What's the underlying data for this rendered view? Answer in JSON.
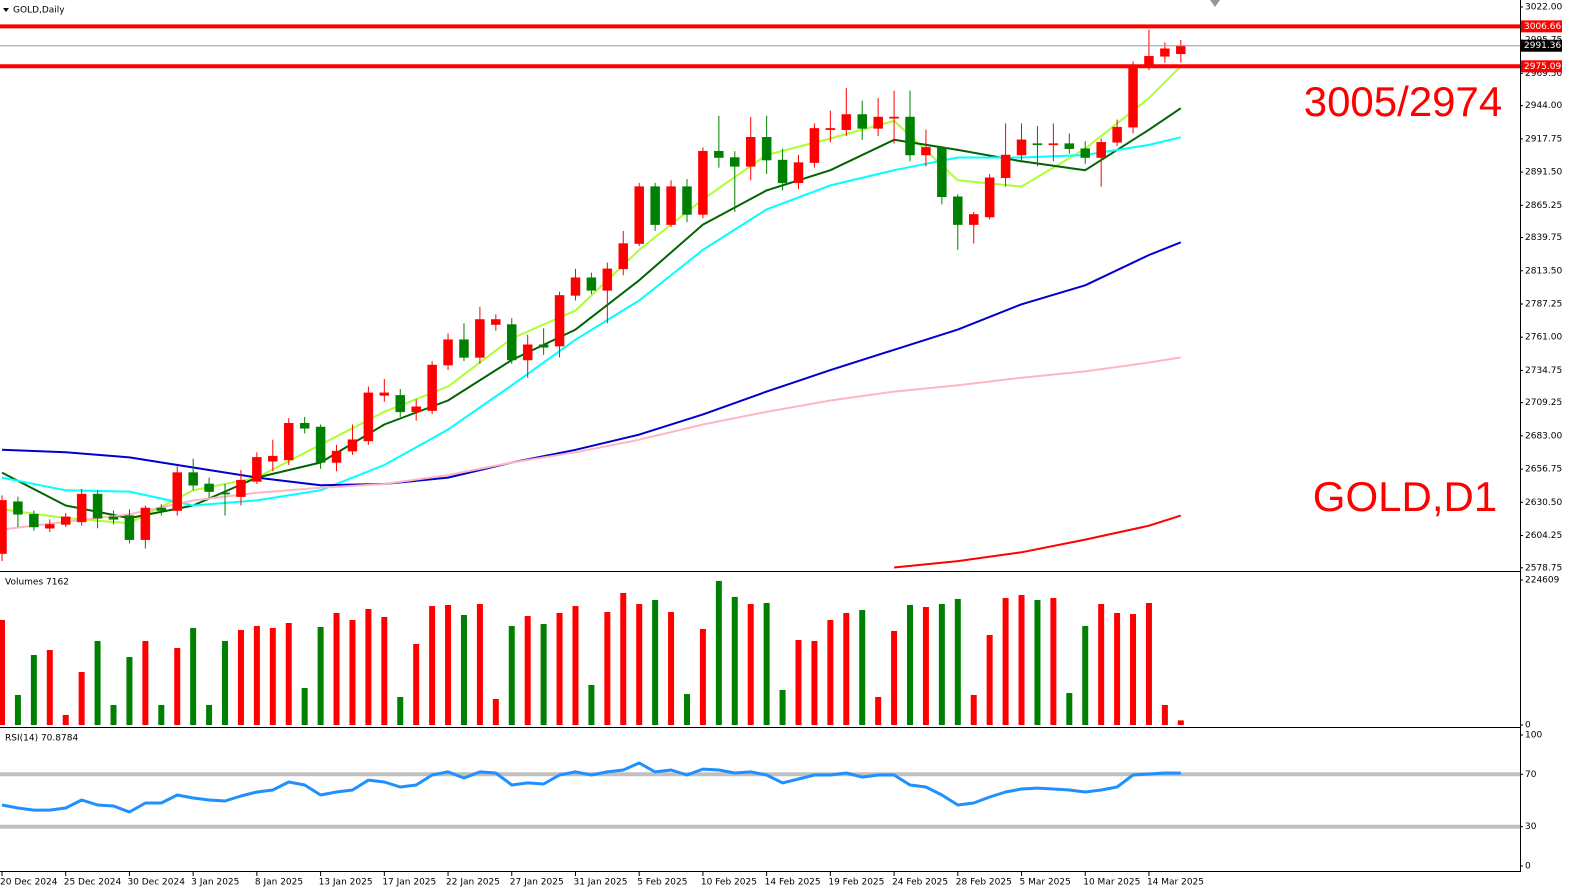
{
  "chart_data": [
    {
      "type": "candlestick",
      "title": "GOLD,Daily",
      "categories": [
        "20 Dec 2024",
        null,
        null,
        null,
        "25 Dec 2024",
        null,
        null,
        null,
        "30 Dec 2024",
        null,
        null,
        null,
        "3 Jan 2025",
        null,
        null,
        null,
        "8 Jan 2025",
        null,
        null,
        null,
        "13 Jan 2025",
        null,
        null,
        null,
        "17 Jan 2025",
        null,
        null,
        null,
        "22 Jan 2025",
        null,
        null,
        null,
        "27 Jan 2025",
        null,
        null,
        null,
        "31 Jan 2025",
        null,
        null,
        null,
        "5 Feb 2025",
        null,
        null,
        null,
        "10 Feb 2025",
        null,
        null,
        null,
        "14 Feb 2025",
        null,
        null,
        null,
        "19 Feb 2025",
        null,
        null,
        null,
        "24 Feb 2025",
        null,
        null,
        null,
        "28 Feb 2025",
        null,
        null,
        null,
        "5 Mar 2025",
        null,
        null,
        null,
        "10 Mar 2025",
        null,
        null,
        null,
        "14 Mar 2025",
        null,
        null
      ],
      "open": [
        2590,
        2631,
        2621,
        2610,
        2613,
        2615,
        2637,
        2619,
        2620,
        2601,
        2626,
        2624,
        2654,
        2645,
        2638,
        2635,
        2647,
        2663,
        2664,
        2693,
        2690,
        2662,
        2671,
        2679,
        2715,
        2715,
        2702,
        2703,
        2739,
        2759,
        2745,
        2771,
        2771,
        2743,
        2755,
        2754,
        2794,
        2808,
        2798,
        2815,
        2835,
        2880,
        2850,
        2880,
        2858,
        2908,
        2903,
        2896,
        2919,
        2901,
        2883,
        2899,
        2925,
        2925,
        2937,
        2926,
        2934,
        2935,
        2905,
        2911,
        2872,
        2850,
        2856,
        2887,
        2905,
        2914,
        2913,
        2914,
        2910,
        2903,
        2915,
        2927,
        2976,
        2983,
        2985
      ],
      "high": [
        2636,
        2635,
        2624,
        2617,
        2622,
        2641,
        2640,
        2624,
        2625,
        2628,
        2629,
        2659,
        2665,
        2650,
        2645,
        2656,
        2670,
        2680,
        2697,
        2698,
        2692,
        2676,
        2692,
        2722,
        2728,
        2720,
        2712,
        2742,
        2764,
        2772,
        2785,
        2779,
        2776,
        2763,
        2768,
        2797,
        2815,
        2812,
        2820,
        2845,
        2883,
        2883,
        2885,
        2886,
        2911,
        2936,
        2908,
        2935,
        2936,
        2910,
        2905,
        2930,
        2940,
        2958,
        2948,
        2950,
        2956,
        2956,
        2925,
        2912,
        2874,
        2860,
        2890,
        2930,
        2930,
        2928,
        2930,
        2922,
        2916,
        2918,
        2933,
        2979,
        3004,
        2994,
        2996
      ],
      "low": [
        2584,
        2611,
        2608,
        2607,
        2611,
        2612,
        2610,
        2613,
        2598,
        2594,
        2620,
        2620,
        2640,
        2634,
        2620,
        2628,
        2645,
        2655,
        2660,
        2685,
        2657,
        2655,
        2668,
        2676,
        2710,
        2698,
        2695,
        2700,
        2735,
        2742,
        2740,
        2766,
        2740,
        2729,
        2747,
        2745,
        2790,
        2795,
        2772,
        2810,
        2833,
        2845,
        2848,
        2852,
        2855,
        2895,
        2860,
        2885,
        2890,
        2877,
        2878,
        2895,
        2915,
        2920,
        2917,
        2920,
        2914,
        2900,
        2896,
        2866,
        2830,
        2835,
        2854,
        2880,
        2899,
        2896,
        2900,
        2906,
        2898,
        2880,
        2912,
        2922,
        2972,
        2978,
        2978
      ],
      "close": [
        2632,
        2621,
        2611,
        2613,
        2619,
        2637,
        2618,
        2617,
        2601,
        2626,
        2624,
        2654,
        2644,
        2639,
        2637,
        2648,
        2666,
        2667,
        2693,
        2689,
        2662,
        2671,
        2680,
        2717,
        2717,
        2702,
        2706,
        2739,
        2759,
        2745,
        2775,
        2775,
        2743,
        2755,
        2753,
        2794,
        2808,
        2798,
        2815,
        2835,
        2880,
        2850,
        2880,
        2858,
        2908,
        2903,
        2896,
        2919,
        2901,
        2883,
        2899,
        2926,
        2926,
        2937,
        2926,
        2935,
        2935,
        2905,
        2911,
        2872,
        2850,
        2858,
        2887,
        2905,
        2917,
        2913,
        2914,
        2910,
        2903,
        2915,
        2927,
        2976,
        2983,
        2989,
        2991.36
      ],
      "up_color": "#ff0000",
      "down_color": "#008000",
      "ma_x": [
        0,
        4,
        8,
        12,
        16,
        20,
        24,
        28,
        32,
        36,
        40,
        44,
        48,
        52,
        56,
        60,
        64,
        68,
        72,
        74
      ],
      "moving_averages": [
        {
          "color": "#adff2f",
          "values": [
            2625,
            2618,
            2614,
            2640,
            2650,
            2676,
            2702,
            2722,
            2760,
            2782,
            2830,
            2870,
            2905,
            2918,
            2932,
            2885,
            2880,
            2910,
            2950,
            2975
          ]
        },
        {
          "color": "#006400",
          "values": [
            2654,
            2628,
            2618,
            2628,
            2650,
            2662,
            2692,
            2711,
            2743,
            2767,
            2806,
            2850,
            2877,
            2893,
            2917,
            2909,
            2900,
            2893,
            2925,
            2942
          ]
        },
        {
          "color": "#00ffff",
          "values": [
            2650,
            2640,
            2639,
            2628,
            2632,
            2640,
            2660,
            2688,
            2723,
            2759,
            2790,
            2830,
            2862,
            2881,
            2893,
            2903,
            2903,
            2905,
            2913,
            2919
          ]
        },
        {
          "color": "#0000cd",
          "values": [
            2672,
            2670,
            2666,
            2658,
            2650,
            2644,
            2645,
            2650,
            2662,
            2672,
            2684,
            2700,
            2718,
            2735,
            2751,
            2767,
            2787,
            2802,
            2826,
            2836
          ]
        },
        {
          "color": "#ffb6c1",
          "values": [
            2609,
            2615,
            2621,
            2632,
            2638,
            2642,
            2645,
            2652,
            2662,
            2670,
            2680,
            2692,
            2702,
            2711,
            2718,
            2723,
            2729,
            2734,
            2741,
            2745
          ]
        },
        {
          "color": "#ff0000",
          "values": [
            null,
            null,
            null,
            null,
            null,
            null,
            null,
            null,
            null,
            null,
            null,
            null,
            null,
            null,
            2579,
            2584,
            2591,
            2601,
            2612,
            2620
          ]
        }
      ],
      "levels": [
        3006.66,
        2991.36,
        2975.09
      ],
      "level_colors": [
        "#ff0000",
        "#8c9aa8",
        "#ff0000"
      ],
      "annotations": [
        "3005/2974",
        "GOLD,D1"
      ],
      "ylim": [
        2577,
        3027.5
      ],
      "yticks": [
        {
          "value": 3022,
          "label": "3022.00"
        },
        2995.75,
        {
          "value": 2969.5,
          "label": "2969.50"
        },
        {
          "value": 2944,
          "label": "2944.00"
        },
        2917.75,
        {
          "value": 2891.5,
          "label": "2891.50"
        },
        2865.25,
        2839.75,
        {
          "value": 2813.5,
          "label": "2813.50"
        },
        2787.25,
        {
          "value": 2761,
          "label": "2761.00"
        },
        2734.75,
        2709.25,
        {
          "value": 2683,
          "label": "2683.00"
        },
        2656.75,
        {
          "value": 2630.5,
          "label": "2630.50"
        },
        2604.25,
        2578.75
      ]
    },
    {
      "type": "bar",
      "title": "Volumes 7162",
      "values": [
        162600,
        46500,
        108400,
        116200,
        15500,
        82100,
        130100,
        31000,
        105300,
        130100,
        31000,
        119300,
        150300,
        31000,
        130100,
        147200,
        153400,
        150300,
        158000,
        57300,
        151800,
        173500,
        162600,
        179700,
        167300,
        43400,
        125500,
        184300,
        185900,
        170400,
        187400,
        40300,
        153400,
        168800,
        156400,
        173500,
        184300,
        62000,
        175000,
        204500,
        187400,
        193600,
        175000,
        48000,
        148700,
        223100,
        198300,
        187400,
        189000,
        54200,
        131700,
        130100,
        162600,
        173500,
        178100,
        43400,
        145600,
        185900,
        182800,
        187400,
        195200,
        46500,
        139400,
        196700,
        201400,
        193600,
        196700,
        49600,
        153400,
        187400,
        173500,
        171900,
        189000,
        31000,
        7162
      ],
      "ylim": [
        0,
        224609
      ],
      "yticks": [
        0,
        224609
      ]
    },
    {
      "type": "line",
      "title": "RSI(14) 70.8784",
      "color": "#1e90ff",
      "values": [
        46.6,
        44.3,
        42.7,
        42.7,
        44.3,
        50.4,
        46.6,
        45.8,
        41.2,
        48.1,
        48.1,
        54.2,
        51.9,
        50.4,
        49.6,
        53.4,
        56.5,
        58.0,
        64.1,
        61.8,
        54.2,
        56.5,
        58.0,
        65.6,
        64.1,
        60.3,
        61.8,
        69.5,
        71.8,
        67.2,
        71.8,
        71.0,
        61.8,
        63.4,
        62.6,
        69.5,
        71.8,
        69.5,
        71.8,
        73.3,
        78.6,
        71.8,
        73.3,
        69.5,
        74.0,
        73.3,
        71.0,
        71.8,
        69.5,
        63.4,
        66.4,
        69.5,
        69.5,
        71.0,
        67.9,
        69.5,
        69.5,
        61.8,
        60.3,
        54.2,
        46.6,
        48.1,
        52.7,
        56.5,
        58.8,
        59.5,
        58.8,
        58.0,
        56.5,
        58.0,
        60.3,
        69.5,
        70.2,
        71.0,
        70.8784
      ],
      "levels": [
        70,
        30
      ],
      "ylim": [
        0,
        100
      ],
      "yticks": [
        0,
        30,
        70,
        100
      ]
    }
  ]
}
